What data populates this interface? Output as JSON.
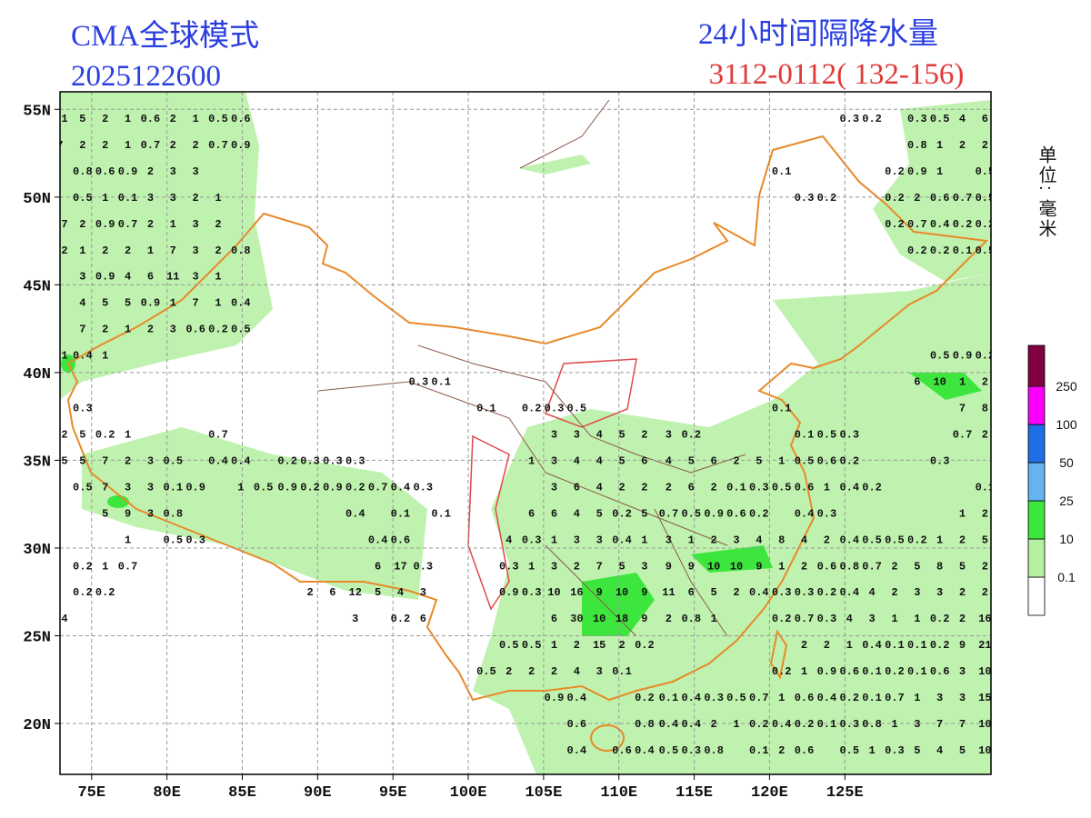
{
  "header": {
    "model": "CMA全球模式",
    "init_time": "2025122600",
    "product": "24小时间隔降水量",
    "period": "3112-0112( 132-156)"
  },
  "map": {
    "lonlim": [
      72.9,
      134.7
    ],
    "latlim": [
      17.1,
      56
    ],
    "lonticks": [
      {
        "value": 75,
        "label": "75E"
      },
      {
        "value": 80,
        "label": "80E"
      },
      {
        "value": 85,
        "label": "85E"
      },
      {
        "value": 90,
        "label": "90E"
      },
      {
        "value": 95,
        "label": "95E"
      },
      {
        "value": 100,
        "label": "100E"
      },
      {
        "value": 105,
        "label": "105E"
      },
      {
        "value": 110,
        "label": "110E"
      },
      {
        "value": 115,
        "label": "115E"
      },
      {
        "value": 120,
        "label": "120E"
      },
      {
        "value": 125,
        "label": "125E"
      }
    ],
    "latticks": [
      {
        "value": 55,
        "label": "55N"
      },
      {
        "value": 50,
        "label": "50N"
      },
      {
        "value": 45,
        "label": "45N"
      },
      {
        "value": 40,
        "label": "40N"
      },
      {
        "value": 35,
        "label": "35N"
      },
      {
        "value": 30,
        "label": "30N"
      },
      {
        "value": 25,
        "label": "25N"
      },
      {
        "value": 20,
        "label": "20N"
      }
    ],
    "grid": true,
    "rows": [
      {
        "lat": 54.5,
        "lon": [
          73.2,
          74.4,
          75.9,
          77.4,
          78.9,
          80.4,
          81.9,
          83.4,
          84.9,
          125.3,
          126.8,
          129.8,
          131.3,
          132.8,
          134.3
        ],
        "values": [
          1,
          5,
          2,
          1,
          0.6,
          2,
          1,
          0.5,
          0.6,
          0.3,
          0.2,
          0.3,
          0.5,
          4,
          6
        ]
      },
      {
        "lat": 53,
        "lon": [
          72.9,
          74.4,
          75.9,
          77.4,
          78.9,
          80.4,
          81.9,
          83.4,
          84.9,
          129.8,
          131.3,
          132.8,
          134.3
        ],
        "values": [
          7,
          2,
          2,
          1,
          0.7,
          2,
          2,
          0.7,
          0.9,
          0.8,
          1,
          2,
          2
        ]
      },
      {
        "lat": 51.5,
        "lon": [
          74.4,
          75.9,
          77.4,
          78.9,
          80.4,
          81.9,
          120.8,
          128.3,
          129.8,
          131.3,
          134.3
        ],
        "values": [
          0.8,
          0.6,
          0.9,
          2,
          3,
          3,
          0.1,
          0.2,
          0.9,
          1,
          0.5
        ]
      },
      {
        "lat": 50,
        "lon": [
          74.4,
          75.9,
          77.4,
          78.9,
          80.4,
          81.9,
          83.4,
          122.3,
          123.8,
          128.3,
          129.8,
          131.3,
          132.8,
          134.3
        ],
        "values": [
          0.5,
          1,
          0.1,
          3,
          3,
          2,
          1,
          0.3,
          0.2,
          0.2,
          2,
          0.6,
          0.7,
          0.5
        ]
      },
      {
        "lat": 48.5,
        "lon": [
          73.2,
          74.4,
          75.9,
          77.4,
          78.9,
          80.4,
          81.9,
          83.4,
          128.3,
          129.8,
          131.3,
          132.8,
          134.3
        ],
        "values": [
          7,
          2,
          0.9,
          0.7,
          2,
          1,
          3,
          2,
          0.2,
          0.7,
          0.4,
          0.2,
          0.2
        ]
      },
      {
        "lat": 47,
        "lon": [
          73.2,
          74.4,
          75.9,
          77.4,
          78.9,
          80.4,
          81.9,
          83.4,
          84.9,
          129.8,
          131.3,
          132.8,
          134.3
        ],
        "values": [
          2,
          1,
          2,
          2,
          1,
          7,
          3,
          2,
          0.8,
          0.2,
          0.2,
          0.1,
          0.5
        ]
      },
      {
        "lat": 45.5,
        "lon": [
          74.4,
          75.9,
          77.4,
          78.9,
          80.4,
          81.9,
          83.4
        ],
        "values": [
          3,
          0.9,
          4,
          6,
          11,
          3,
          1
        ]
      },
      {
        "lat": 44,
        "lon": [
          74.4,
          75.9,
          77.4,
          78.9,
          80.4,
          81.9,
          83.4,
          84.9
        ],
        "values": [
          4,
          5,
          5,
          0.9,
          1,
          7,
          1,
          0.4
        ]
      },
      {
        "lat": 42.5,
        "lon": [
          74.4,
          75.9,
          77.4,
          78.9,
          80.4,
          81.9,
          83.4,
          84.9
        ],
        "values": [
          7,
          2,
          1,
          2,
          3,
          0.6,
          0.2,
          0.5
        ]
      },
      {
        "lat": 41,
        "lon": [
          73.2,
          74.4,
          75.9,
          131.3,
          132.8,
          134.3
        ],
        "values": [
          1,
          0.4,
          1,
          0.5,
          0.9,
          0.2
        ]
      },
      {
        "lat": 39.5,
        "lon": [
          96.7,
          98.2,
          129.8,
          131.3,
          132.8,
          134.3
        ],
        "values": [
          0.3,
          0.1,
          6,
          10,
          1,
          2
        ]
      },
      {
        "lat": 38,
        "lon": [
          74.4,
          101.2,
          104.2,
          105.7,
          107.2,
          120.8,
          132.8,
          134.3
        ],
        "values": [
          0.3,
          0.1,
          0.2,
          0.3,
          0.5,
          0.1,
          7,
          8
        ]
      },
      {
        "lat": 36.5,
        "lon": [
          73.2,
          74.4,
          75.9,
          77.4,
          83.4,
          105.7,
          107.2,
          108.7,
          110.2,
          111.7,
          113.3,
          114.8,
          122.3,
          123.8,
          125.3,
          132.8,
          134.3
        ],
        "values": [
          2,
          5,
          0.2,
          1,
          0.7,
          3,
          3,
          4,
          5,
          2,
          3,
          0.2,
          0.1,
          0.5,
          0.3,
          0.7,
          2
        ]
      },
      {
        "lat": 35,
        "lon": [
          73.2,
          74.4,
          75.9,
          77.4,
          78.9,
          80.4,
          83.4,
          84.9,
          88.0,
          89.5,
          91.0,
          92.5,
          104.2,
          105.7,
          107.2,
          108.7,
          110.2,
          111.7,
          113.3,
          114.8,
          116.3,
          117.8,
          119.3,
          120.8,
          122.3,
          123.8,
          125.3,
          131.3
        ],
        "values": [
          5,
          5,
          7,
          2,
          3,
          0.5,
          0.4,
          0.4,
          0.2,
          0.3,
          0.3,
          0.3,
          1,
          3,
          4,
          4,
          5,
          6,
          4,
          5,
          6,
          2,
          5,
          1,
          0.5,
          0.6,
          0.2,
          0.3
        ]
      },
      {
        "lat": 33.5,
        "lon": [
          74.4,
          75.9,
          77.4,
          78.9,
          80.4,
          81.9,
          84.9,
          86.4,
          88.0,
          89.5,
          91.0,
          92.5,
          94.0,
          95.5,
          97.0,
          105.7,
          107.2,
          108.7,
          110.2,
          111.7,
          113.3,
          114.8,
          116.3,
          117.8,
          119.3,
          120.8,
          122.3,
          123.8,
          125.3,
          126.8,
          134.3
        ],
        "values": [
          0.5,
          7,
          3,
          3,
          0.1,
          0.9,
          1,
          0.5,
          0.9,
          0.2,
          0.9,
          0.2,
          0.7,
          0.4,
          0.3,
          3,
          6,
          4,
          2,
          2,
          2,
          6,
          2,
          0.1,
          0.3,
          0.5,
          0.6,
          1,
          0.4,
          0.2,
          0.1
        ]
      },
      {
        "lat": 32,
        "lon": [
          75.9,
          77.4,
          78.9,
          80.4,
          92.5,
          95.5,
          98.2,
          104.2,
          105.7,
          107.2,
          108.7,
          110.2,
          111.7,
          113.3,
          114.8,
          116.3,
          117.8,
          119.3,
          122.3,
          123.8,
          132.8,
          134.3
        ],
        "values": [
          5,
          9,
          3,
          0.8,
          0.4,
          0.1,
          0.1,
          6,
          6,
          4,
          5,
          0.2,
          5,
          0.7,
          0.5,
          0.9,
          0.6,
          0.2,
          0.4,
          0.3,
          1,
          2
        ]
      },
      {
        "lat": 30.5,
        "lon": [
          77.4,
          80.4,
          81.9,
          94.0,
          95.5,
          102.7,
          104.2,
          105.7,
          107.2,
          108.7,
          110.2,
          111.7,
          113.3,
          114.8,
          116.3,
          117.8,
          119.3,
          120.8,
          122.3,
          123.8,
          125.3,
          126.8,
          128.3,
          129.8,
          131.3,
          132.8,
          134.3
        ],
        "values": [
          1,
          0.5,
          0.3,
          0.4,
          0.6,
          4,
          0.3,
          1,
          3,
          3,
          0.4,
          1,
          3,
          1,
          2,
          3,
          4,
          8,
          4,
          2,
          0.4,
          0.5,
          0.5,
          0.2,
          1,
          2,
          5
        ]
      },
      {
        "lat": 29,
        "lon": [
          74.4,
          75.9,
          77.4,
          94.0,
          95.5,
          97.0,
          102.7,
          104.2,
          105.7,
          107.2,
          108.7,
          110.2,
          111.7,
          113.3,
          114.8,
          116.3,
          117.8,
          119.3,
          120.8,
          122.3,
          123.8,
          125.3,
          126.8,
          128.3,
          129.8,
          131.3,
          132.8,
          134.3
        ],
        "values": [
          0.2,
          1,
          0.7,
          6,
          17,
          0.3,
          0.3,
          1,
          3,
          2,
          7,
          5,
          3,
          9,
          9,
          10,
          10,
          9,
          1,
          2,
          0.6,
          0.8,
          0.7,
          2,
          5,
          8,
          5,
          2
        ]
      },
      {
        "lat": 27.5,
        "lon": [
          74.4,
          75.9,
          89.5,
          91.0,
          92.5,
          94.0,
          95.5,
          97.0,
          102.7,
          104.2,
          105.7,
          107.2,
          108.7,
          110.2,
          111.7,
          113.3,
          114.8,
          116.3,
          117.8,
          119.3,
          120.8,
          122.3,
          123.8,
          125.3,
          126.8,
          128.3,
          129.8,
          131.3,
          132.8,
          134.3
        ],
        "values": [
          0.2,
          0.2,
          2,
          6,
          12,
          5,
          4,
          3,
          0.9,
          0.3,
          10,
          16,
          9,
          10,
          9,
          11,
          6,
          5,
          2,
          0.4,
          0.3,
          0.3,
          0.2,
          0.4,
          4,
          2,
          3,
          3,
          2,
          2
        ]
      },
      {
        "lat": 26,
        "lon": [
          73.2,
          92.5,
          95.5,
          97.0,
          105.7,
          107.2,
          108.7,
          110.2,
          111.7,
          113.3,
          114.8,
          116.3,
          120.8,
          122.3,
          123.8,
          125.3,
          126.8,
          128.3,
          129.8,
          131.3,
          132.8,
          134.3
        ],
        "values": [
          4,
          3,
          0.2,
          6,
          6,
          30,
          10,
          18,
          9,
          2,
          0.8,
          1,
          0.2,
          0.7,
          0.3,
          4,
          3,
          1,
          1,
          0.2,
          2,
          16
        ]
      },
      {
        "lat": 24.5,
        "lon": [
          102.7,
          104.2,
          105.7,
          107.2,
          108.7,
          110.2,
          111.7,
          122.3,
          123.8,
          125.3,
          126.8,
          128.3,
          129.8,
          131.3,
          132.8,
          134.3
        ],
        "values": [
          0.5,
          0.5,
          1,
          2,
          15,
          2,
          0.2,
          2,
          2,
          1,
          0.4,
          0.1,
          0.1,
          0.2,
          9,
          21
        ]
      },
      {
        "lat": 23,
        "lon": [
          101.2,
          102.7,
          104.2,
          105.7,
          107.2,
          108.7,
          110.2,
          120.8,
          122.3,
          123.8,
          125.3,
          126.8,
          128.3,
          129.8,
          131.3,
          132.8,
          134.3
        ],
        "values": [
          0.5,
          2,
          2,
          2,
          4,
          3,
          0.1,
          0.2,
          1,
          0.9,
          0.6,
          0.1,
          0.2,
          0.1,
          0.6,
          3,
          10
        ]
      },
      {
        "lat": 21.5,
        "lon": [
          105.7,
          107.2,
          111.7,
          113.3,
          114.8,
          116.3,
          117.8,
          119.3,
          120.8,
          122.3,
          123.8,
          125.3,
          126.8,
          128.3,
          129.8,
          131.3,
          132.8,
          134.3
        ],
        "values": [
          0.9,
          0.4,
          0.2,
          0.1,
          0.4,
          0.3,
          0.5,
          0.7,
          1,
          0.6,
          0.4,
          0.2,
          0.1,
          0.7,
          1,
          3,
          3,
          15
        ]
      },
      {
        "lat": 20,
        "lon": [
          107.2,
          111.7,
          113.3,
          114.8,
          116.3,
          117.8,
          119.3,
          120.8,
          122.3,
          123.8,
          125.3,
          126.8,
          128.3,
          129.8,
          131.3,
          132.8,
          134.3
        ],
        "values": [
          0.6,
          0.8,
          0.4,
          0.4,
          2,
          1,
          0.2,
          0.4,
          0.2,
          0.1,
          0.3,
          0.8,
          1,
          3,
          7,
          7,
          10
        ]
      },
      {
        "lat": 18.5,
        "lon": [
          107.2,
          110.2,
          111.7,
          113.3,
          114.8,
          116.3,
          119.3,
          120.8,
          122.3,
          125.3,
          126.8,
          128.3,
          129.8,
          131.3,
          132.8,
          134.3
        ],
        "values": [
          0.4,
          0.6,
          0.4,
          0.5,
          0.3,
          0.8,
          0.1,
          2,
          0.6,
          0.5,
          1,
          0.3,
          5,
          4,
          5,
          10
        ]
      }
    ]
  },
  "legend": {
    "title": "单位: 毫米",
    "levels": [
      0.1,
      10,
      25,
      50,
      100,
      250
    ],
    "colors": [
      "#ffffff",
      "#b4f0a0",
      "#3ce63c",
      "#64b4f0",
      "#1e6ee6",
      "#fa00fa",
      "#800040"
    ]
  }
}
